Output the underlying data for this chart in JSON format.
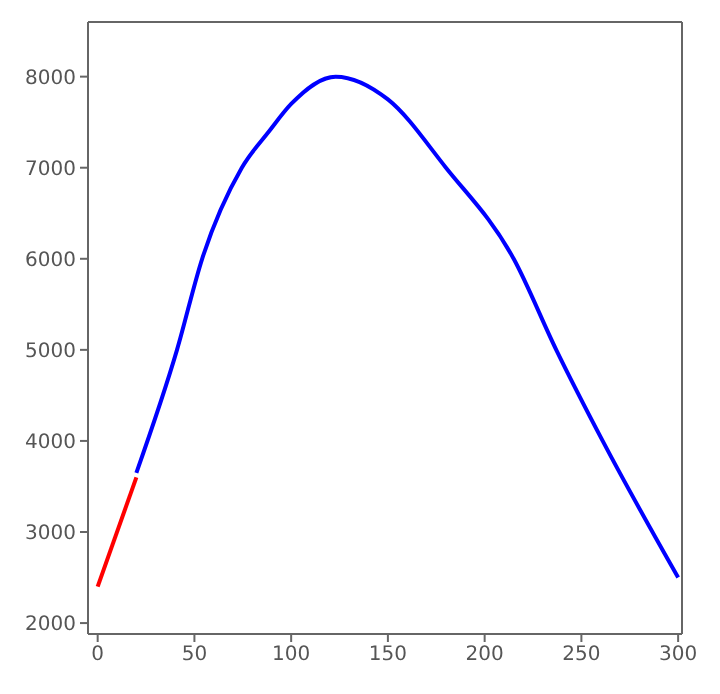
{
  "chart_data": {
    "type": "line",
    "series": [
      {
        "color": "#ff0000",
        "x": [
          0,
          20
        ],
        "values": [
          2400,
          3600
        ]
      },
      {
        "color": "#0000ff",
        "x": [
          20,
          41,
          54,
          74.5,
          88.6,
          100,
          123,
          150,
          180,
          215,
          237,
          261,
          300
        ],
        "values": [
          3650,
          5000,
          6000,
          7000,
          7400,
          7700,
          8000,
          7750,
          7000,
          6000,
          5000,
          4000,
          2500
        ]
      }
    ],
    "xlim": [
      -5,
      302
    ],
    "ylim": [
      1880,
      8600
    ],
    "xticks": [
      0,
      50,
      100,
      150,
      200,
      250,
      300
    ],
    "yticks": [
      2000,
      3000,
      4000,
      5000,
      6000,
      7000,
      8000
    ],
    "grid": false,
    "legend": false,
    "marker": "none",
    "line_style": "solid"
  }
}
